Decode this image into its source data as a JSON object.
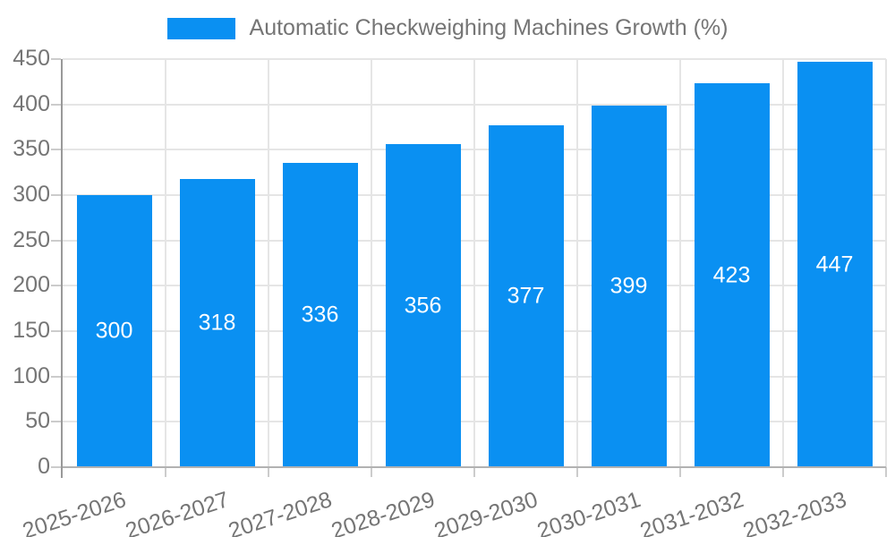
{
  "chart_data": {
    "type": "bar",
    "title": "Automatic Checkweighing Machines Growth (%)",
    "categories": [
      "2025-2026",
      "2026-2027",
      "2027-2028",
      "2028-2029",
      "2029-2030",
      "2030-2031",
      "2031-2032",
      "2032-2033"
    ],
    "values": [
      300,
      318,
      336,
      356,
      377,
      399,
      423,
      447
    ],
    "series": [
      {
        "name": "Automatic Checkweighing Machines Growth (%)",
        "values": [
          300,
          318,
          336,
          356,
          377,
          399,
          423,
          447
        ]
      }
    ],
    "bar_value_labels": [
      "300",
      "318",
      "336",
      "356",
      "377",
      "399",
      "423",
      "447"
    ],
    "xlabel": "",
    "ylabel": "",
    "ylim": [
      0,
      450
    ],
    "ytick_step": 50,
    "yticks": [
      0,
      50,
      100,
      150,
      200,
      250,
      300,
      350,
      400,
      450
    ],
    "grid": "on",
    "legend_position": "top",
    "colors": {
      "bar": "#0a90f2",
      "grid": "#e5e5e5",
      "axis_line": "#999999",
      "baseline": "#b2b2b2",
      "tick": "#cccccc",
      "text": "#757575",
      "bar_label": "#ffffff"
    }
  }
}
